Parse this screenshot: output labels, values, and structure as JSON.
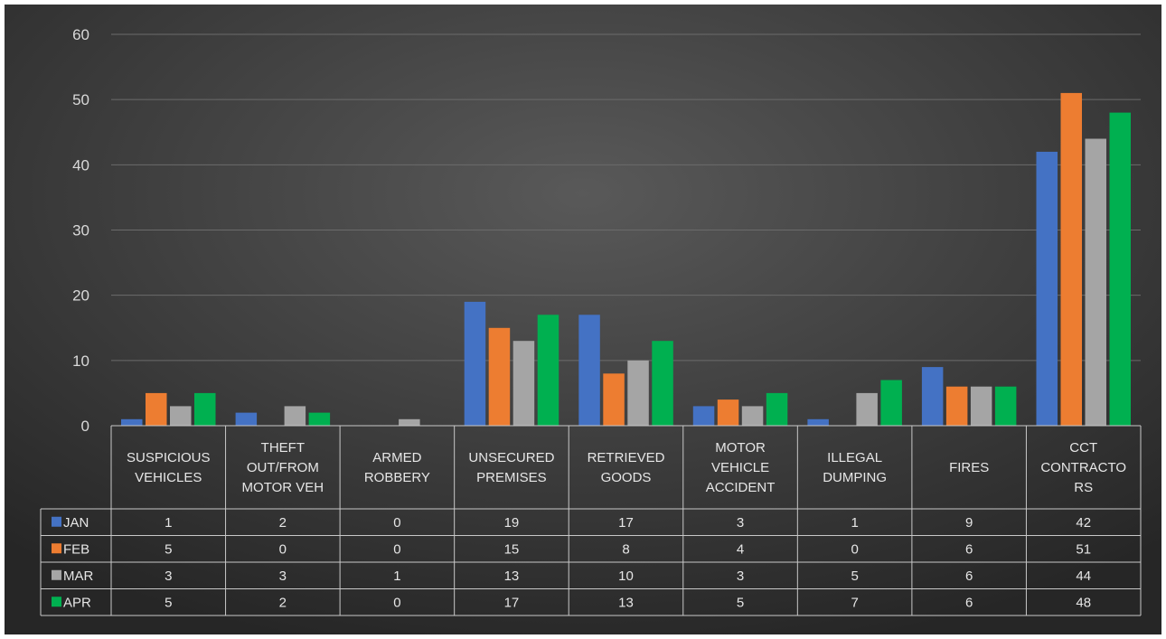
{
  "chart_data": {
    "type": "bar",
    "title": "",
    "xlabel": "",
    "ylabel": "",
    "ylim": [
      0,
      60
    ],
    "yticks": [
      "0",
      "10",
      "20",
      "30",
      "40",
      "50",
      "60"
    ],
    "grid": true,
    "legend": "data-table-left",
    "categories": [
      [
        "SUSPICIOUS",
        "VEHICLES"
      ],
      [
        "THEFT",
        "OUT/FROM",
        "MOTOR VEH"
      ],
      [
        "ARMED",
        "ROBBERY"
      ],
      [
        "UNSECURED",
        "PREMISES"
      ],
      [
        "RETRIEVED",
        "GOODS"
      ],
      [
        "MOTOR",
        "VEHICLE",
        "ACCIDENT"
      ],
      [
        "ILLEGAL",
        "DUMPING"
      ],
      [
        "FIRES"
      ],
      [
        "CCT",
        "CONTRACTO",
        "RS"
      ]
    ],
    "series": [
      {
        "name": "JAN",
        "color": "#4472c4",
        "values": [
          1,
          2,
          0,
          19,
          17,
          3,
          1,
          9,
          42
        ]
      },
      {
        "name": "FEB",
        "color": "#ed7d31",
        "values": [
          5,
          0,
          0,
          15,
          8,
          4,
          0,
          6,
          51
        ]
      },
      {
        "name": "MAR",
        "color": "#a5a5a5",
        "values": [
          3,
          3,
          1,
          13,
          10,
          3,
          5,
          6,
          44
        ]
      },
      {
        "name": "APR",
        "color": "#00b050",
        "values": [
          5,
          2,
          0,
          17,
          13,
          5,
          7,
          6,
          48
        ]
      }
    ]
  }
}
